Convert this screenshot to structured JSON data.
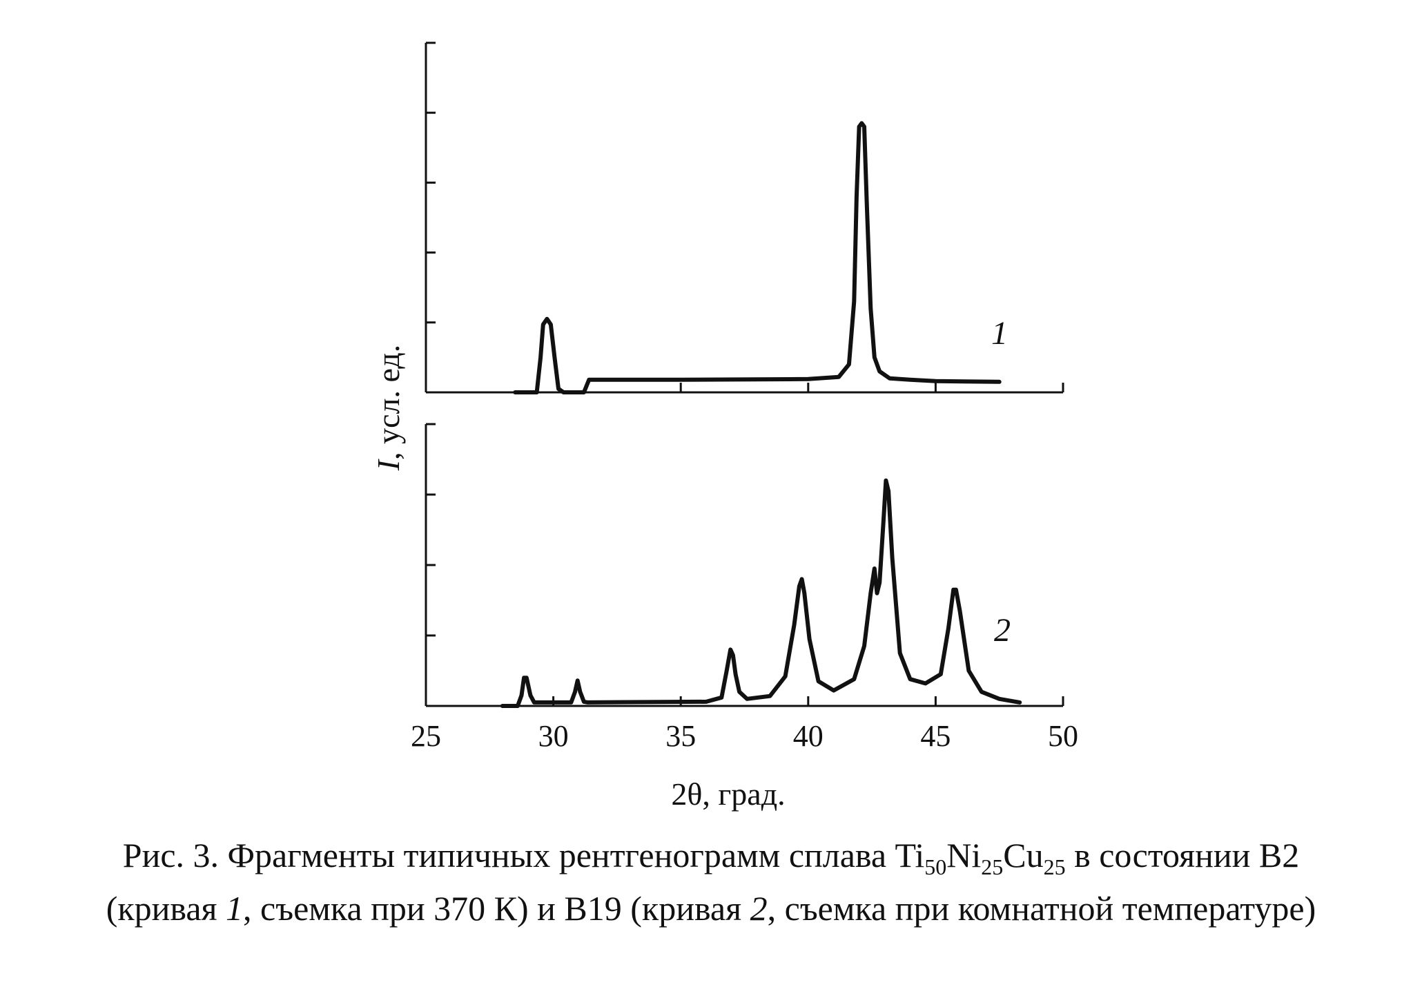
{
  "chart_data": [
    {
      "type": "line",
      "panel": "top",
      "xlim": [
        25,
        50
      ],
      "ylim": [
        0,
        5
      ],
      "y_ticks": [
        1,
        2,
        3,
        4,
        5
      ],
      "x_ticks": [
        35,
        40,
        45,
        50
      ],
      "grid": false,
      "series": [
        {
          "name": "1",
          "x": [
            28.5,
            29.35,
            29.5,
            29.6,
            29.75,
            29.9,
            30.05,
            30.2,
            30.4,
            31.2,
            31.4,
            35,
            40,
            41.2,
            41.6,
            41.8,
            41.9,
            42.0,
            42.1,
            42.2,
            42.3,
            42.45,
            42.6,
            42.8,
            43.2,
            44,
            45,
            47.5
          ],
          "y": [
            0,
            0,
            0.5,
            0.97,
            1.05,
            0.97,
            0.5,
            0.05,
            0,
            0,
            0.18,
            0.18,
            0.19,
            0.22,
            0.4,
            1.3,
            2.8,
            3.8,
            3.85,
            3.8,
            2.7,
            1.2,
            0.5,
            0.3,
            0.2,
            0.18,
            0.16,
            0.15
          ]
        }
      ]
    },
    {
      "type": "line",
      "panel": "bottom",
      "xlim": [
        25,
        50
      ],
      "ylim": [
        0,
        4
      ],
      "x_ticks": [
        25,
        30,
        35,
        40,
        45,
        50
      ],
      "y_ticks": [
        1,
        2,
        3,
        4
      ],
      "xlabel": "2θ, град.",
      "grid": false,
      "series": [
        {
          "name": "2",
          "x": [
            28.0,
            28.6,
            28.75,
            28.85,
            28.95,
            29.1,
            29.25,
            30.7,
            30.85,
            30.95,
            31.05,
            31.2,
            31.35,
            36.0,
            36.6,
            36.8,
            36.95,
            37.05,
            37.15,
            37.3,
            37.6,
            38.5,
            39.1,
            39.45,
            39.65,
            39.75,
            39.85,
            40.05,
            40.4,
            41.0,
            41.8,
            42.2,
            42.45,
            42.6,
            42.7,
            42.8,
            42.95,
            43.05,
            43.15,
            43.3,
            43.6,
            44.0,
            44.6,
            45.2,
            45.5,
            45.7,
            45.8,
            45.95,
            46.3,
            46.8,
            47.5,
            48.3
          ],
          "y": [
            0,
            0,
            0.15,
            0.4,
            0.4,
            0.15,
            0.05,
            0.05,
            0.2,
            0.36,
            0.2,
            0.06,
            0.05,
            0.06,
            0.12,
            0.5,
            0.8,
            0.72,
            0.45,
            0.2,
            0.1,
            0.14,
            0.42,
            1.15,
            1.7,
            1.8,
            1.6,
            0.95,
            0.35,
            0.22,
            0.38,
            0.85,
            1.6,
            1.95,
            1.6,
            1.75,
            2.6,
            3.2,
            3.05,
            2.1,
            0.75,
            0.38,
            0.32,
            0.45,
            1.1,
            1.65,
            1.65,
            1.35,
            0.5,
            0.2,
            0.1,
            0.05
          ]
        }
      ]
    }
  ],
  "labels": {
    "y_axis": "I, усл. ед.",
    "y_axis_italic": "I",
    "y_axis_rest": ", усл. ед.",
    "x_axis": "2θ, град.",
    "curve1": "1",
    "curve2": "2"
  },
  "caption": {
    "line1_pre": "Рис. 3. Фрагменты типичных рентгенограмм сплава Ti",
    "sub1": "50",
    "mid1": "Ni",
    "sub2": "25",
    "mid2": "Cu",
    "sub3": "25",
    "line1_post": " в состоянии B2",
    "line2_a": "(кривая ",
    "line2_i1": "1",
    "line2_b": ", съемка при 370 К) и B19 (кривая ",
    "line2_i2": "2",
    "line2_c": ", съемка при комнатной температуре)"
  },
  "colors": {
    "ink": "#111111",
    "background": "#ffffff"
  }
}
